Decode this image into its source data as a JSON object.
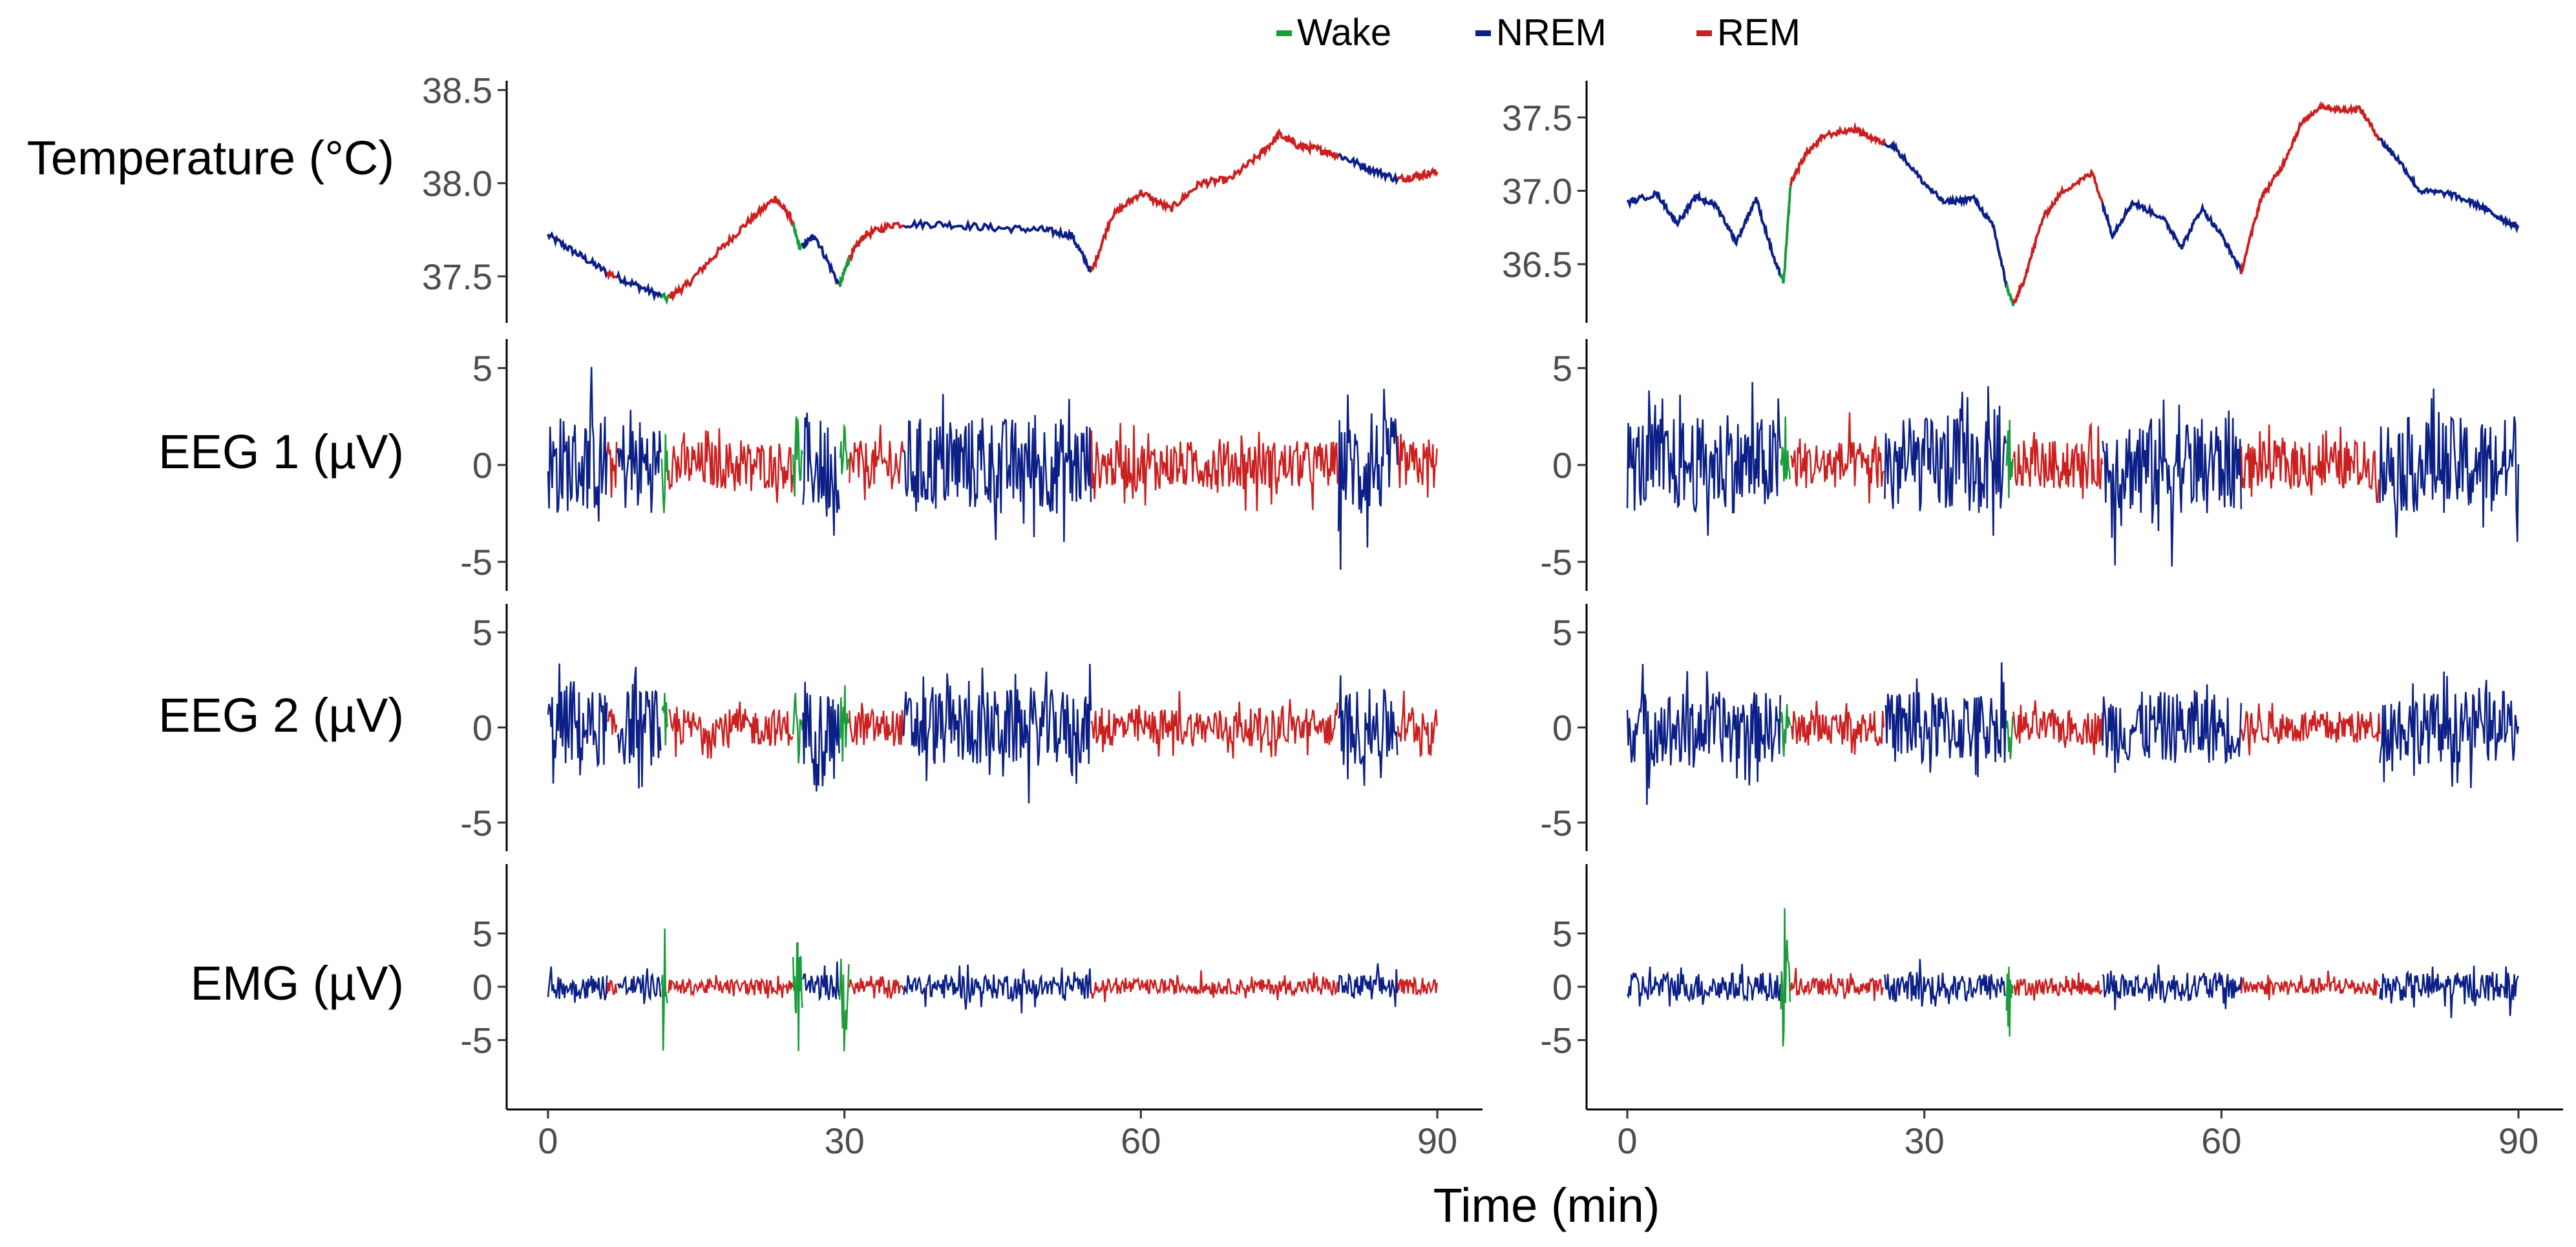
{
  "chart_data": {
    "type": "line",
    "description_free": true,
    "xlabel": "Time (min)",
    "xlim": [
      0,
      90
    ],
    "x_ticks": [
      0,
      30,
      60,
      90
    ],
    "x_tick_labels": [
      "0",
      "30",
      "60",
      "90"
    ],
    "legend": {
      "position": "top",
      "entries": [
        {
          "label": "Wake",
          "color": "#1a9c3a"
        },
        {
          "label": "NREM",
          "color": "#0b1f86"
        },
        {
          "label": "REM",
          "color": "#cc1f1f"
        }
      ]
    },
    "rows": [
      {
        "label": "Temperature (°C)",
        "key": "temp"
      },
      {
        "label": "EEG 1 (µV)",
        "key": "eeg1"
      },
      {
        "label": "EEG 2 (µV)",
        "key": "eeg2"
      },
      {
        "label": "EMG (µV)",
        "key": "emg"
      }
    ],
    "panels": [
      {
        "name": "left",
        "epochs": [
          {
            "start": 0,
            "end": 6,
            "state": "NREM"
          },
          {
            "start": 6,
            "end": 7,
            "state": "REM"
          },
          {
            "start": 7,
            "end": 11.5,
            "state": "NREM"
          },
          {
            "start": 11.5,
            "end": 12.2,
            "state": "Wake"
          },
          {
            "start": 12.2,
            "end": 24.8,
            "state": "REM"
          },
          {
            "start": 24.8,
            "end": 25.8,
            "state": "Wake"
          },
          {
            "start": 25.8,
            "end": 29.5,
            "state": "NREM"
          },
          {
            "start": 29.5,
            "end": 30.5,
            "state": "Wake"
          },
          {
            "start": 30.5,
            "end": 36,
            "state": "REM"
          },
          {
            "start": 36,
            "end": 55,
            "state": "NREM"
          },
          {
            "start": 55,
            "end": 80,
            "state": "REM"
          },
          {
            "start": 80,
            "end": 86,
            "state": "NREM"
          },
          {
            "start": 86,
            "end": 90,
            "state": "REM"
          }
        ],
        "temperature": {
          "ylim": [
            37.25,
            38.55
          ],
          "ticks": [
            37.5,
            38.0,
            38.5
          ],
          "tick_labels": [
            "37.5",
            "38.0",
            "38.5"
          ],
          "x": [
            0,
            3,
            6,
            9,
            12,
            14,
            17,
            20,
            23,
            24.5,
            25.5,
            27,
            29.5,
            30.5,
            32,
            35,
            40,
            45,
            50,
            53,
            55,
            57,
            60,
            63,
            66,
            69,
            72,
            74,
            76,
            78,
            80,
            83,
            86,
            88,
            90
          ],
          "y": [
            37.72,
            37.62,
            37.52,
            37.45,
            37.38,
            37.45,
            37.62,
            37.78,
            37.92,
            37.82,
            37.65,
            37.72,
            37.45,
            37.6,
            37.72,
            37.78,
            37.78,
            37.76,
            37.75,
            37.72,
            37.52,
            37.82,
            37.95,
            37.86,
            38.0,
            38.02,
            38.15,
            38.26,
            38.2,
            38.18,
            38.15,
            38.08,
            38.02,
            38.04,
            38.06
          ]
        },
        "eeg1": {
          "ylim": [
            -6.5,
            6.5
          ],
          "ticks": [
            -5,
            0,
            5
          ],
          "tick_labels": [
            "-5",
            "0",
            "5"
          ],
          "amplitude": {
            "NREM": 5.5,
            "REM": 2.8,
            "Wake": 3.2
          }
        },
        "eeg2": {
          "ylim": [
            -6.5,
            6.5
          ],
          "ticks": [
            -5,
            0,
            5
          ],
          "tick_labels": [
            "-5",
            "0",
            "5"
          ],
          "amplitude": {
            "NREM": 4.5,
            "REM": 2.2,
            "Wake": 3.0
          }
        },
        "emg": {
          "ylim": [
            -11.5,
            11.5
          ],
          "ticks": [
            -5,
            0,
            5
          ],
          "tick_labels": [
            "-5",
            "0",
            "5"
          ],
          "amplitude": {
            "NREM": 2.6,
            "REM": 1.6,
            "Wake": 10.5
          }
        }
      },
      {
        "name": "right",
        "epochs": [
          {
            "start": 0,
            "end": 15.5,
            "state": "NREM"
          },
          {
            "start": 15.5,
            "end": 16.5,
            "state": "Wake"
          },
          {
            "start": 16.5,
            "end": 26,
            "state": "REM"
          },
          {
            "start": 26,
            "end": 38.3,
            "state": "NREM"
          },
          {
            "start": 38.3,
            "end": 39,
            "state": "Wake"
          },
          {
            "start": 39,
            "end": 48,
            "state": "REM"
          },
          {
            "start": 48,
            "end": 62,
            "state": "NREM"
          },
          {
            "start": 62,
            "end": 76,
            "state": "REM"
          },
          {
            "start": 76,
            "end": 90,
            "state": "NREM"
          }
        ],
        "temperature": {
          "ylim": [
            36.1,
            37.75
          ],
          "ticks": [
            36.5,
            37.0,
            37.5
          ],
          "tick_labels": [
            "36.5",
            "37.0",
            "37.5"
          ],
          "x": [
            0,
            3,
            5,
            7,
            9,
            11,
            13,
            15,
            15.8,
            16.5,
            18,
            20,
            23,
            25,
            27,
            30,
            32,
            35,
            37,
            38.3,
            39,
            40,
            42,
            44,
            47,
            49,
            51,
            54,
            56,
            58,
            60,
            62,
            64,
            66,
            68,
            70,
            72,
            74,
            76,
            78,
            80,
            83,
            86,
            88,
            90
          ],
          "y": [
            36.92,
            36.98,
            36.78,
            36.96,
            36.9,
            36.65,
            36.95,
            36.5,
            36.38,
            37.05,
            37.25,
            37.38,
            37.42,
            37.35,
            37.3,
            37.05,
            36.92,
            36.95,
            36.75,
            36.35,
            36.22,
            36.38,
            36.82,
            37.0,
            37.12,
            36.7,
            36.92,
            36.82,
            36.62,
            36.88,
            36.7,
            36.45,
            36.95,
            37.15,
            37.45,
            37.58,
            37.55,
            37.56,
            37.35,
            37.2,
            37.0,
            36.98,
            36.9,
            36.82,
            36.75
          ]
        },
        "eeg1": {
          "ylim": [
            -6.5,
            6.5
          ],
          "ticks": [
            -5,
            0,
            5
          ],
          "tick_labels": [
            "-5",
            "0",
            "5"
          ],
          "amplitude": {
            "NREM": 5.5,
            "REM": 2.8,
            "Wake": 3.0
          }
        },
        "eeg2": {
          "ylim": [
            -6.5,
            6.5
          ],
          "ticks": [
            -5,
            0,
            5
          ],
          "tick_labels": [
            "-5",
            "0",
            "5"
          ],
          "amplitude": {
            "NREM": 4.2,
            "REM": 2.0,
            "Wake": 2.5
          }
        },
        "emg": {
          "ylim": [
            -11.5,
            11.5
          ],
          "ticks": [
            -5,
            0,
            5
          ],
          "tick_labels": [
            "-5",
            "0",
            "5"
          ],
          "amplitude": {
            "NREM": 3.0,
            "REM": 1.8,
            "Wake": 8.0
          }
        }
      }
    ]
  }
}
